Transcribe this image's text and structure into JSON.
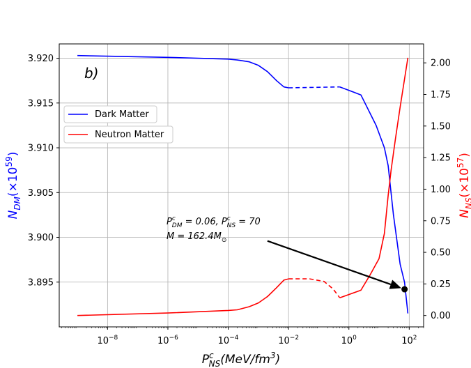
{
  "chart_data": {
    "type": "line",
    "panel_label": "b)",
    "xlabel": "P_NS^c (MeV/fm^3)",
    "xscale": "log",
    "xlim": [
      2.5e-10,
      300
    ],
    "x_ticks": [
      {
        "value": 1e-08,
        "base": "10",
        "exp": "−8"
      },
      {
        "value": 1e-06,
        "base": "10",
        "exp": "−6"
      },
      {
        "value": 0.0001,
        "base": "10",
        "exp": "−4"
      },
      {
        "value": 0.01,
        "base": "10",
        "exp": "−2"
      },
      {
        "value": 1,
        "base": "10",
        "exp": "0"
      },
      {
        "value": 100,
        "base": "10",
        "exp": "2"
      }
    ],
    "y_left": {
      "label": "N_DM (×10^59)",
      "color": "#1f1fff",
      "ylim": [
        3.89,
        3.9216
      ],
      "ticks": [
        "3.895",
        "3.900",
        "3.905",
        "3.910",
        "3.915",
        "3.920"
      ]
    },
    "y_right": {
      "label": "N_NS (×10^57)",
      "color": "#ff0000",
      "ylim": [
        -0.09,
        2.15
      ],
      "ticks": [
        "0.00",
        "0.25",
        "0.50",
        "0.75",
        "1.00",
        "1.25",
        "1.50",
        "1.75",
        "2.00"
      ]
    },
    "grid": true,
    "legend": [
      "Dark Matter",
      "Neutron Matter"
    ],
    "legend_position": "upper-left",
    "series": [
      {
        "name": "Dark Matter",
        "axis": "left",
        "color": "#0000ff",
        "segments": [
          {
            "style": "solid",
            "x": [
              1e-09,
              1e-06,
              0.0001,
              0.0002,
              0.0005,
              0.001,
              0.002,
              0.004,
              0.007,
              0.01
            ],
            "y": [
              3.9203,
              3.9201,
              3.9199,
              3.9198,
              3.9196,
              3.9192,
              3.9185,
              3.9175,
              3.9168,
              3.9167
            ]
          },
          {
            "style": "dashed",
            "x": [
              0.01,
              0.5
            ],
            "y": [
              3.9167,
              3.9168
            ]
          },
          {
            "style": "solid",
            "x": [
              0.5,
              2.5,
              8,
              15,
              20,
              30,
              50,
              70,
              90
            ],
            "y": [
              3.9168,
              3.9159,
              3.9125,
              3.91,
              3.908,
              3.9025,
              3.897,
              3.895,
              3.8915
            ]
          }
        ]
      },
      {
        "name": "Neutron Matter",
        "axis": "right",
        "color": "#ff0000",
        "segments": [
          {
            "style": "solid",
            "x": [
              1e-09,
              1e-06,
              0.0001,
              0.0002,
              0.0005,
              0.001,
              0.002,
              0.004,
              0.007,
              0.01
            ],
            "y": [
              0.0,
              0.02,
              0.04,
              0.045,
              0.07,
              0.1,
              0.15,
              0.22,
              0.28,
              0.29
            ]
          },
          {
            "style": "dashed",
            "x": [
              0.01,
              0.05,
              0.15,
              0.3,
              0.5
            ],
            "y": [
              0.29,
              0.29,
              0.27,
              0.21,
              0.14
            ]
          },
          {
            "style": "solid",
            "x": [
              0.5,
              2.5,
              5,
              10,
              15,
              20,
              25,
              35,
              50,
              90
            ],
            "y": [
              0.14,
              0.2,
              0.32,
              0.45,
              0.65,
              0.95,
              1.15,
              1.4,
              1.65,
              2.04
            ]
          }
        ]
      }
    ],
    "annotation": {
      "line1": "P_DM^c = 0.06, P_NS^c = 70",
      "line2": "M = 162.4M_⊙",
      "point": {
        "x": 70,
        "y_left": 3.8942
      },
      "arrow_from": {
        "x": 0.002,
        "y_left": 3.8996
      }
    }
  }
}
